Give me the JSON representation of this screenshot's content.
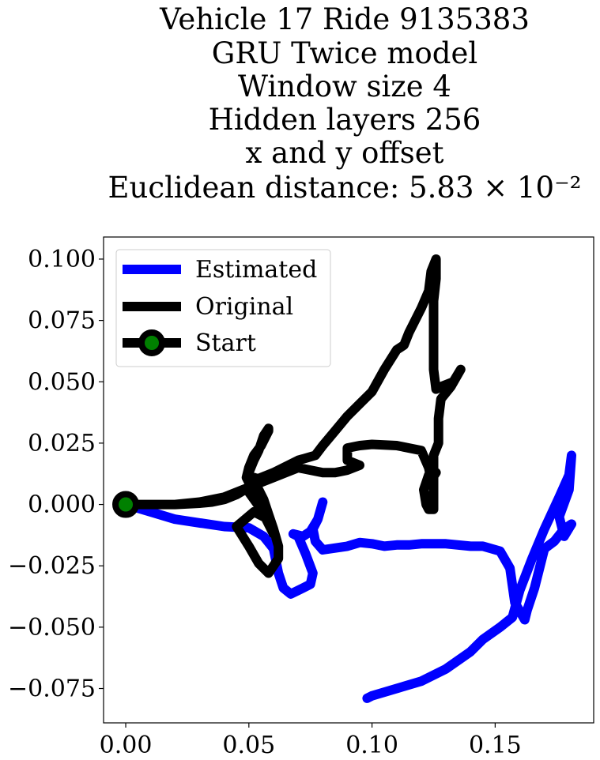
{
  "chart_data": {
    "type": "line",
    "title_lines": [
      "Vehicle 17 Ride 9135383",
      "GRU Twice model",
      "Window size 4",
      "Hidden layers 256",
      "x and y offset",
      "Euclidean distance: 5.83 × 10⁻²"
    ],
    "xlabel": "",
    "ylabel": "",
    "xlim": [
      -0.009,
      0.19
    ],
    "ylim": [
      -0.089,
      0.109
    ],
    "xticks": [
      0.0,
      0.05,
      0.1,
      0.15
    ],
    "xtick_labels": [
      "0.00",
      "0.05",
      "0.10",
      "0.15"
    ],
    "yticks": [
      0.1,
      0.075,
      0.05,
      0.025,
      0.0,
      -0.025,
      -0.05,
      -0.075
    ],
    "ytick_labels": [
      "0.100",
      "0.075",
      "0.050",
      "0.025",
      "0.000",
      "−0.025",
      "−0.050",
      "−0.075"
    ],
    "grid": false,
    "legend_position": "top-left",
    "series": [
      {
        "name": "Estimated",
        "color": "#0000ff",
        "points": [
          [
            0.0,
            0.0
          ],
          [
            0.01,
            -0.003
          ],
          [
            0.02,
            -0.006
          ],
          [
            0.03,
            -0.0075
          ],
          [
            0.04,
            -0.009
          ],
          [
            0.05,
            -0.0095
          ],
          [
            0.056,
            -0.013
          ],
          [
            0.06,
            -0.018
          ],
          [
            0.062,
            -0.028
          ],
          [
            0.064,
            -0.034
          ],
          [
            0.067,
            -0.0365
          ],
          [
            0.072,
            -0.034
          ],
          [
            0.075,
            -0.0325
          ],
          [
            0.076,
            -0.028
          ],
          [
            0.073,
            -0.02
          ],
          [
            0.07,
            -0.013
          ],
          [
            0.068,
            -0.012
          ],
          [
            0.072,
            -0.013
          ],
          [
            0.075,
            -0.011
          ],
          [
            0.078,
            -0.006
          ],
          [
            0.08,
            0.001
          ],
          [
            0.078,
            -0.006
          ],
          [
            0.076,
            -0.01
          ],
          [
            0.077,
            -0.015
          ],
          [
            0.08,
            -0.0185
          ],
          [
            0.09,
            -0.017
          ],
          [
            0.095,
            -0.0155
          ],
          [
            0.1,
            -0.016
          ],
          [
            0.105,
            -0.017
          ],
          [
            0.11,
            -0.0165
          ],
          [
            0.115,
            -0.0165
          ],
          [
            0.12,
            -0.016
          ],
          [
            0.13,
            -0.016
          ],
          [
            0.14,
            -0.017
          ],
          [
            0.145,
            -0.017
          ],
          [
            0.152,
            -0.019
          ],
          [
            0.156,
            -0.026
          ],
          [
            0.158,
            -0.04
          ],
          [
            0.162,
            -0.047
          ],
          [
            0.163,
            -0.043
          ],
          [
            0.166,
            -0.034
          ],
          [
            0.17,
            -0.018
          ],
          [
            0.174,
            -0.015
          ],
          [
            0.178,
            -0.01
          ],
          [
            0.181,
            -0.008
          ],
          [
            0.178,
            -0.013
          ],
          [
            0.176,
            -0.005
          ],
          [
            0.18,
            0.006
          ],
          [
            0.181,
            0.02
          ],
          [
            0.18,
            0.012
          ],
          [
            0.176,
            0.003
          ],
          [
            0.17,
            -0.01
          ],
          [
            0.165,
            -0.022
          ],
          [
            0.16,
            -0.035
          ],
          [
            0.157,
            -0.046
          ],
          [
            0.152,
            -0.05
          ],
          [
            0.145,
            -0.055
          ],
          [
            0.14,
            -0.06
          ],
          [
            0.13,
            -0.067
          ],
          [
            0.12,
            -0.072
          ],
          [
            0.11,
            -0.075
          ],
          [
            0.1,
            -0.078
          ],
          [
            0.098,
            -0.079
          ]
        ]
      },
      {
        "name": "Original",
        "color": "#000000",
        "points": [
          [
            0.0,
            0.0
          ],
          [
            0.01,
            0.0
          ],
          [
            0.02,
            0.0
          ],
          [
            0.03,
            0.0005
          ],
          [
            0.035,
            0.001
          ],
          [
            0.04,
            0.002
          ],
          [
            0.045,
            0.004
          ],
          [
            0.05,
            0.007
          ],
          [
            0.053,
            0.01
          ],
          [
            0.055,
            0.01
          ],
          [
            0.052,
            0.011
          ],
          [
            0.05,
            0.009
          ],
          [
            0.052,
            0.008
          ],
          [
            0.054,
            0.006
          ],
          [
            0.056,
            0.002
          ],
          [
            0.058,
            -0.004
          ],
          [
            0.06,
            -0.01
          ],
          [
            0.062,
            -0.017
          ],
          [
            0.062,
            -0.022
          ],
          [
            0.06,
            -0.025
          ],
          [
            0.058,
            -0.028
          ],
          [
            0.054,
            -0.024
          ],
          [
            0.05,
            -0.017
          ],
          [
            0.045,
            -0.009
          ],
          [
            0.052,
            -0.003
          ],
          [
            0.058,
            -0.006
          ],
          [
            0.06,
            -0.012
          ],
          [
            0.055,
            -0.002
          ],
          [
            0.05,
            0.005
          ],
          [
            0.05,
            0.009
          ],
          [
            0.049,
            0.011
          ],
          [
            0.05,
            0.015
          ],
          [
            0.052,
            0.02
          ],
          [
            0.055,
            0.024
          ],
          [
            0.058,
            0.03
          ],
          [
            0.058,
            0.031
          ],
          [
            0.056,
            0.028
          ],
          [
            0.054,
            0.022
          ],
          [
            0.052,
            0.018
          ],
          [
            0.05,
            0.013
          ],
          [
            0.05,
            0.009
          ],
          [
            0.055,
            0.011
          ],
          [
            0.06,
            0.013
          ],
          [
            0.07,
            0.018
          ],
          [
            0.077,
            0.02
          ],
          [
            0.08,
            0.024
          ],
          [
            0.085,
            0.03
          ],
          [
            0.09,
            0.036
          ],
          [
            0.1,
            0.046
          ],
          [
            0.105,
            0.055
          ],
          [
            0.11,
            0.063
          ],
          [
            0.113,
            0.065
          ],
          [
            0.115,
            0.07
          ],
          [
            0.12,
            0.08
          ],
          [
            0.123,
            0.087
          ],
          [
            0.124,
            0.095
          ],
          [
            0.126,
            0.1
          ],
          [
            0.126,
            0.092
          ],
          [
            0.125,
            0.083
          ],
          [
            0.125,
            0.07
          ],
          [
            0.125,
            0.055
          ],
          [
            0.126,
            0.047
          ],
          [
            0.128,
            0.048
          ],
          [
            0.133,
            0.05
          ],
          [
            0.136,
            0.055
          ],
          [
            0.132,
            0.048
          ],
          [
            0.128,
            0.043
          ],
          [
            0.127,
            0.035
          ],
          [
            0.127,
            0.025
          ],
          [
            0.125,
            0.02
          ],
          [
            0.125,
            0.012
          ],
          [
            0.125,
            0.007
          ],
          [
            0.125,
            0.003
          ],
          [
            0.125,
            -0.002
          ],
          [
            0.123,
            -0.002
          ],
          [
            0.122,
            0.0
          ],
          [
            0.121,
            0.006
          ],
          [
            0.123,
            0.012
          ],
          [
            0.126,
            0.013
          ],
          [
            0.124,
            0.01
          ],
          [
            0.123,
            0.015
          ],
          [
            0.12,
            0.022
          ],
          [
            0.11,
            0.024
          ],
          [
            0.1,
            0.0245
          ],
          [
            0.095,
            0.024
          ],
          [
            0.09,
            0.023
          ],
          [
            0.09,
            0.018
          ],
          [
            0.095,
            0.016
          ],
          [
            0.09,
            0.014
          ],
          [
            0.085,
            0.013
          ],
          [
            0.08,
            0.013
          ],
          [
            0.075,
            0.014
          ],
          [
            0.07,
            0.015
          ],
          [
            0.065,
            0.013
          ],
          [
            0.06,
            0.011
          ],
          [
            0.055,
            0.009
          ],
          [
            0.05,
            0.007
          ],
          [
            0.04,
            0.003
          ],
          [
            0.03,
            0.001
          ],
          [
            0.02,
            0.0
          ]
        ]
      }
    ],
    "start_marker": {
      "name": "Start",
      "point": [
        0.0,
        0.0
      ],
      "edge_color": "#000000",
      "face_color": "#008000"
    }
  }
}
